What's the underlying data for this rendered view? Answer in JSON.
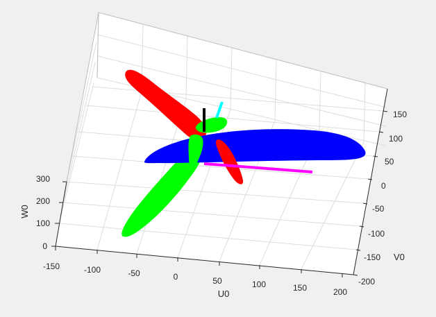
{
  "chart_data": {
    "type": "3d-surface",
    "title": "",
    "xlabel": "U0",
    "ylabel": "V0",
    "zlabel": "W0",
    "x_ticks": [
      "-150",
      "-100",
      "-50",
      "0",
      "50",
      "100",
      "150",
      "200"
    ],
    "y_ticks": [
      "-200",
      "-150",
      "-100",
      "-50",
      "0",
      "50",
      "100",
      "150"
    ],
    "z_ticks": [
      "0",
      "100",
      "200",
      "300"
    ],
    "xlim": [
      -150,
      200
    ],
    "ylim": [
      -200,
      150
    ],
    "zlim": [
      0,
      300
    ],
    "grid": true,
    "box": "back panels",
    "surfaces": [
      {
        "color": "#ff0000"
      },
      {
        "color": "#ff0000"
      },
      {
        "color": "#00ff00"
      },
      {
        "color": "#00ff00"
      },
      {
        "color": "#0000ff"
      }
    ],
    "axis_lines": [
      {
        "color": "#000000"
      },
      {
        "color": "#00ffff"
      },
      {
        "color": "#ff00ff"
      }
    ],
    "colors": {
      "background": "#f0f0f0",
      "plot_area": "#ffffff",
      "grid": "#dcdcdc",
      "axis": "#262626"
    }
  }
}
